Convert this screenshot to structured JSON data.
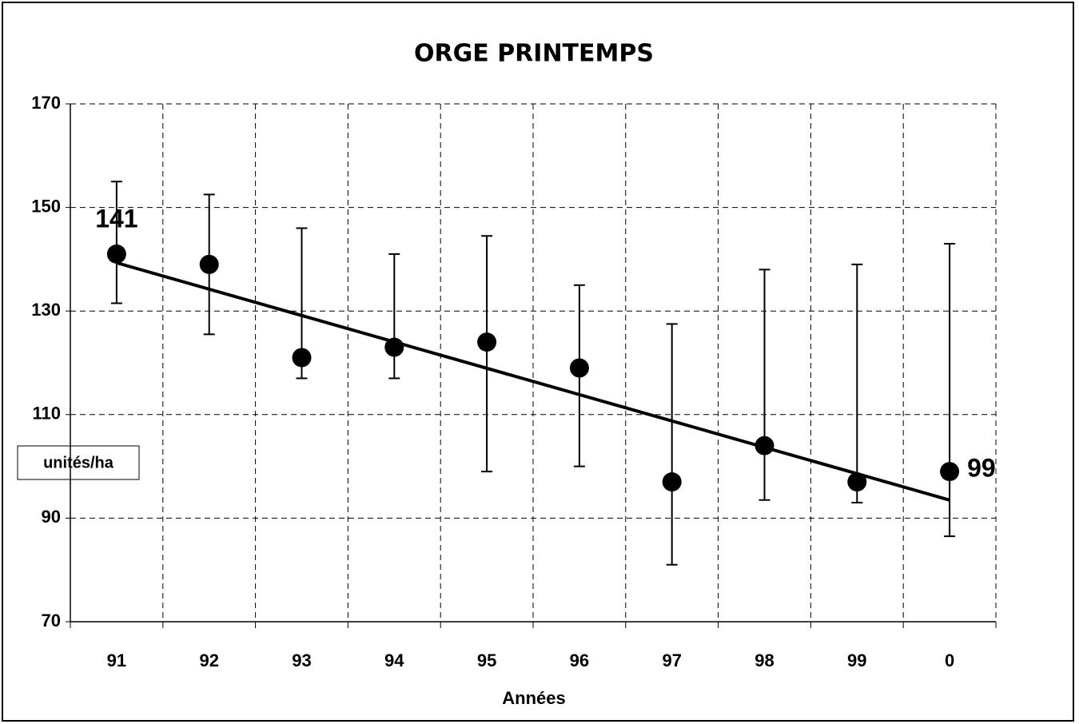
{
  "chart_data": {
    "type": "errorbar",
    "title": "ORGE PRINTEMPS",
    "x_label": "Années",
    "y_label": "unités/ha",
    "categories": [
      "91",
      "92",
      "93",
      "94",
      "95",
      "96",
      "97",
      "98",
      "99",
      "0"
    ],
    "series": [
      {
        "color": "#000000",
        "values": [
          141,
          139,
          121,
          123,
          124,
          119,
          97,
          104,
          97,
          99
        ],
        "low": [
          131.5,
          125.5,
          117,
          117,
          99,
          100,
          81,
          93.5,
          93,
          86.5
        ],
        "high": [
          155,
          152.5,
          146,
          141,
          144.5,
          135,
          127.5,
          138,
          139,
          143
        ],
        "value_labels": [
          "141",
          null,
          null,
          null,
          null,
          null,
          null,
          null,
          null,
          "99"
        ]
      }
    ],
    "trendline": "linear",
    "ylim": [
      70,
      170
    ],
    "yticks": [
      70,
      90,
      110,
      130,
      150,
      170
    ],
    "grid": true
  }
}
